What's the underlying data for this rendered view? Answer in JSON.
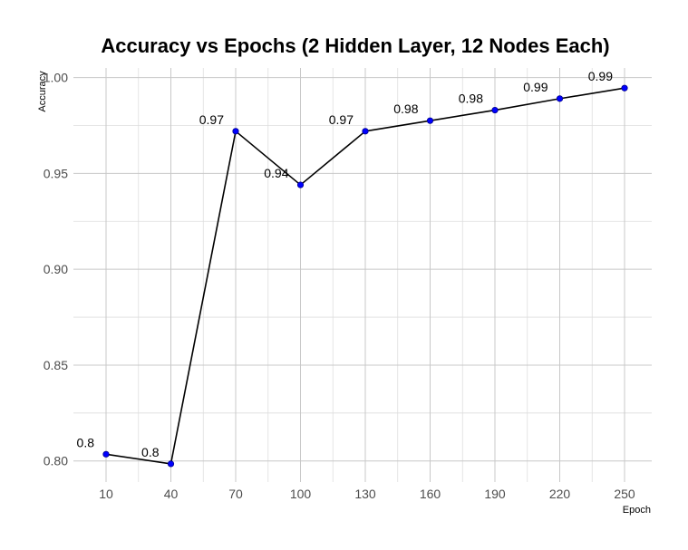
{
  "chart_data": {
    "type": "line",
    "title": "Accuracy vs Epochs (2 Hidden Layer, 12 Nodes Each)",
    "xlabel": "Epoch",
    "ylabel": "Accuracy",
    "x": [
      10,
      40,
      70,
      100,
      130,
      160,
      190,
      220,
      250
    ],
    "x_tick_labels": [
      "10",
      "40",
      "70",
      "100",
      "130",
      "160",
      "190",
      "220",
      "250"
    ],
    "y": [
      0.8035,
      0.7985,
      0.972,
      0.944,
      0.972,
      0.9775,
      0.983,
      0.989,
      0.9945
    ],
    "data_labels": [
      "0.8",
      "0.8",
      "0.97",
      "0.94",
      "0.97",
      "0.98",
      "0.98",
      "0.99",
      "0.99"
    ],
    "y_ticks": [
      0.8,
      0.85,
      0.9,
      0.95,
      1.0
    ],
    "y_tick_labels": [
      "0.80",
      "0.85",
      "0.90",
      "0.95",
      "1.00"
    ],
    "ylim": [
      0.789,
      1.005
    ],
    "grid": true,
    "colors": {
      "line": "#000000",
      "point": "#0000ff",
      "point_edge": "#00008b"
    }
  }
}
